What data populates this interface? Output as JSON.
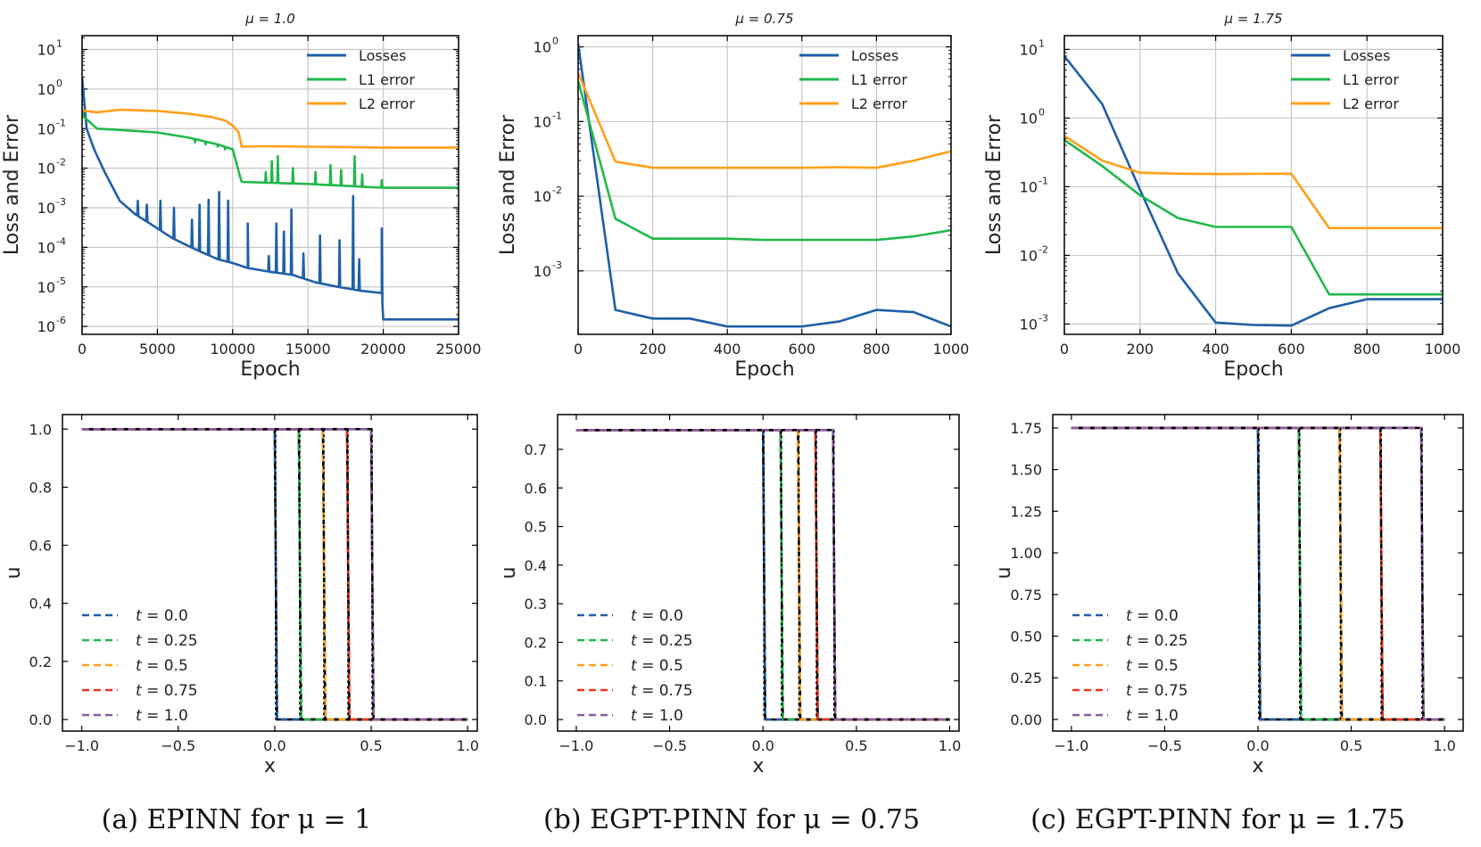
{
  "colors": {
    "losses": "#1f5fa8",
    "l1": "#22b84a",
    "l2": "#ff9f1a",
    "t0": "#1f5fa8",
    "t025": "#22b84a",
    "t05": "#ff9f1a",
    "t075": "#e8361e",
    "t1": "#8e5ca8",
    "exact": "#000000",
    "grid": "#c8c8c8"
  },
  "captions": [
    "(a) EPINN for μ = 1",
    "(b) EGPT-PINN for μ = 0.75",
    "(c) EGPT-PINN for μ = 1.75"
  ],
  "chart_data": [
    {
      "id": "loss-a",
      "type": "line",
      "yscale": "log",
      "title": "μ = 1.0",
      "xlabel": "Epoch",
      "ylabel": "Loss and Error",
      "xlim": [
        0,
        25000
      ],
      "ylim_exp": [
        -6.2,
        1.35
      ],
      "xticks": [
        0,
        5000,
        10000,
        15000,
        20000,
        25000
      ],
      "xticklabels": [
        "0",
        "5000",
        "10000",
        "15000",
        "20000",
        "25000"
      ],
      "ytick_exps": [
        -6,
        -5,
        -4,
        -3,
        -2,
        -1,
        0,
        1
      ],
      "yticklabels": [
        "10",
        "10",
        "10",
        "10",
        "10",
        "10",
        "10",
        "10"
      ],
      "ytick_sups": [
        "-6",
        "-5",
        "-4",
        "-3",
        "-2",
        "-1",
        "0",
        "1"
      ],
      "grid": true,
      "legend": "top-right",
      "series": [
        {
          "name": "Losses",
          "color_key": "losses",
          "x": [
            0,
            300,
            800,
            1500,
            2500,
            3500,
            4500,
            6000,
            7500,
            9000,
            10000,
            11000,
            12500,
            14000,
            15500,
            17000,
            18500,
            19900,
            20000,
            25000
          ],
          "y": [
            2.0,
            0.1,
            0.03,
            0.008,
            0.0015,
            0.0007,
            0.0004,
            0.00017,
            9e-05,
            5e-05,
            4e-05,
            3e-05,
            2.4e-05,
            2e-05,
            1.3e-05,
            1e-05,
            8e-06,
            7e-06,
            1.5e-06,
            1.5e-06
          ],
          "spikes": [
            [
              3700,
              0.0015
            ],
            [
              4300,
              0.0012
            ],
            [
              5200,
              0.0015
            ],
            [
              6100,
              0.001
            ],
            [
              7300,
              0.0005
            ],
            [
              7800,
              0.0012
            ],
            [
              8400,
              0.0016
            ],
            [
              9100,
              0.0025
            ],
            [
              9700,
              0.0015
            ],
            [
              11000,
              0.0004
            ],
            [
              12400,
              6e-05
            ],
            [
              12900,
              0.0004
            ],
            [
              13400,
              0.00025
            ],
            [
              13900,
              0.0009
            ],
            [
              14700,
              7e-05
            ],
            [
              15800,
              0.0002
            ],
            [
              17100,
              0.00015
            ],
            [
              18000,
              0.002
            ],
            [
              18400,
              5e-05
            ],
            [
              19900,
              0.0003
            ]
          ]
        },
        {
          "name": "L1 error",
          "color_key": "l1",
          "x": [
            0,
            100,
            1000,
            3000,
            5000,
            7000,
            9000,
            10000,
            10500,
            10600,
            15000,
            20000,
            25000
          ],
          "y": [
            0.3,
            0.2,
            0.1,
            0.09,
            0.08,
            0.06,
            0.04,
            0.03,
            0.006,
            0.0045,
            0.004,
            0.0032,
            0.0032
          ],
          "spikes": [
            [
              7500,
              0.045
            ],
            [
              8200,
              0.04
            ],
            [
              9000,
              0.035
            ],
            [
              9500,
              0.03
            ],
            [
              12200,
              0.008
            ],
            [
              12600,
              0.015
            ],
            [
              13000,
              0.02
            ],
            [
              14000,
              0.01
            ],
            [
              15500,
              0.008
            ],
            [
              16500,
              0.012
            ],
            [
              17200,
              0.009
            ],
            [
              18100,
              0.02
            ],
            [
              18600,
              0.007
            ],
            [
              19900,
              0.005
            ]
          ]
        },
        {
          "name": "L2 error",
          "color_key": "l2",
          "x": [
            0,
            200,
            1000,
            2500,
            5000,
            7000,
            8500,
            9500,
            10000,
            10400,
            10600,
            12000,
            15000,
            20000,
            25000
          ],
          "y": [
            0.3,
            0.28,
            0.26,
            0.3,
            0.28,
            0.24,
            0.2,
            0.16,
            0.12,
            0.08,
            0.035,
            0.036,
            0.035,
            0.033,
            0.033
          ]
        }
      ]
    },
    {
      "id": "loss-b",
      "type": "line",
      "yscale": "log",
      "title": "μ = 0.75",
      "xlabel": "Epoch",
      "ylabel": "Loss and Error",
      "xlim": [
        0,
        1000
      ],
      "ylim_exp": [
        -3.85,
        0.15
      ],
      "xticks": [
        0,
        200,
        400,
        600,
        800,
        1000
      ],
      "xticklabels": [
        "0",
        "200",
        "400",
        "600",
        "800",
        "1000"
      ],
      "ytick_exps": [
        -3,
        -2,
        -1,
        0
      ],
      "yticklabels": [
        "10",
        "10",
        "10",
        "10"
      ],
      "ytick_sups": [
        "-3",
        "-2",
        "-1",
        "0"
      ],
      "grid": true,
      "legend": "top-right",
      "series": [
        {
          "name": "Losses",
          "color_key": "losses",
          "x": [
            0,
            100,
            200,
            300,
            400,
            500,
            600,
            700,
            800,
            900,
            1000
          ],
          "y": [
            1.1,
            0.0003,
            0.00023,
            0.00023,
            0.00018,
            0.00018,
            0.00018,
            0.00021,
            0.0003,
            0.00028,
            0.00018
          ]
        },
        {
          "name": "L1 error",
          "color_key": "l1",
          "x": [
            0,
            100,
            200,
            300,
            400,
            500,
            600,
            700,
            800,
            900,
            1000
          ],
          "y": [
            0.35,
            0.005,
            0.0027,
            0.0027,
            0.0027,
            0.0026,
            0.0026,
            0.0026,
            0.0026,
            0.0029,
            0.0035
          ]
        },
        {
          "name": "L2 error",
          "color_key": "l2",
          "x": [
            0,
            100,
            200,
            300,
            400,
            500,
            600,
            700,
            800,
            900,
            1000
          ],
          "y": [
            0.45,
            0.029,
            0.024,
            0.024,
            0.024,
            0.024,
            0.024,
            0.0245,
            0.024,
            0.03,
            0.04
          ]
        }
      ]
    },
    {
      "id": "loss-c",
      "type": "line",
      "yscale": "log",
      "title": "μ = 1.75",
      "xlabel": "Epoch",
      "ylabel": "Loss and Error",
      "xlim": [
        0,
        1000
      ],
      "ylim_exp": [
        -3.15,
        1.2
      ],
      "xticks": [
        0,
        200,
        400,
        600,
        800,
        1000
      ],
      "xticklabels": [
        "0",
        "200",
        "400",
        "600",
        "800",
        "1000"
      ],
      "ytick_exps": [
        -3,
        -2,
        -1,
        0,
        1
      ],
      "yticklabels": [
        "10",
        "10",
        "10",
        "10",
        "10"
      ],
      "ytick_sups": [
        "-3",
        "-2",
        "-1",
        "0",
        "1"
      ],
      "grid": true,
      "legend": "top-right",
      "series": [
        {
          "name": "Losses",
          "color_key": "losses",
          "x": [
            0,
            100,
            200,
            300,
            400,
            500,
            600,
            700,
            800,
            900,
            1000
          ],
          "y": [
            8.0,
            1.6,
            0.09,
            0.0055,
            0.00105,
            0.00097,
            0.00095,
            0.0017,
            0.0023,
            0.0023,
            0.0023
          ]
        },
        {
          "name": "L1 error",
          "color_key": "l1",
          "x": [
            0,
            100,
            200,
            300,
            400,
            500,
            600,
            700,
            800,
            900,
            1000
          ],
          "y": [
            0.48,
            0.2,
            0.075,
            0.035,
            0.026,
            0.026,
            0.026,
            0.0027,
            0.0027,
            0.0027,
            0.0027
          ]
        },
        {
          "name": "L2 error",
          "color_key": "l2",
          "x": [
            0,
            100,
            200,
            300,
            400,
            500,
            600,
            700,
            800,
            900,
            1000
          ],
          "y": [
            0.55,
            0.24,
            0.16,
            0.155,
            0.153,
            0.154,
            0.155,
            0.025,
            0.025,
            0.025,
            0.025
          ]
        }
      ]
    },
    {
      "id": "sol-a",
      "type": "line",
      "xlabel": "x",
      "ylabel": "u",
      "xlim": [
        -1.1,
        1.05
      ],
      "ylim": [
        -0.04,
        1.05
      ],
      "xticks": [
        -1.0,
        -0.5,
        0.0,
        0.5,
        1.0
      ],
      "xticklabels": [
        "−1.0",
        "−0.5",
        "0.0",
        "0.5",
        "1.0"
      ],
      "yticks": [
        0.0,
        0.2,
        0.4,
        0.6,
        0.8,
        1.0
      ],
      "yticklabels": [
        "0.0",
        "0.2",
        "0.4",
        "0.6",
        "0.8",
        "1.0"
      ],
      "grid": false,
      "legend": "lower-left",
      "amplitude": 1.0,
      "xmin": -1.0,
      "xmax": 1.0,
      "shocks": [
        0.0,
        0.125,
        0.25,
        0.375,
        0.5
      ],
      "series": [
        {
          "name": "t = 0.0",
          "label_t": "t",
          "label_v": " = 0.0",
          "color_key": "t0"
        },
        {
          "name": "t = 0.25",
          "label_t": "t",
          "label_v": " = 0.25",
          "color_key": "t025"
        },
        {
          "name": "t = 0.5",
          "label_t": "t",
          "label_v": " = 0.5",
          "color_key": "t05"
        },
        {
          "name": "t = 0.75",
          "label_t": "t",
          "label_v": " = 0.75",
          "color_key": "t075"
        },
        {
          "name": "t = 1.0",
          "label_t": "t",
          "label_v": " = 1.0",
          "color_key": "t1"
        }
      ]
    },
    {
      "id": "sol-b",
      "type": "line",
      "xlabel": "x",
      "ylabel": "u",
      "xlim": [
        -1.1,
        1.05
      ],
      "ylim": [
        -0.03,
        0.79
      ],
      "xticks": [
        -1.0,
        -0.5,
        0.0,
        0.5,
        1.0
      ],
      "xticklabels": [
        "−1.0",
        "−0.5",
        "0.0",
        "0.5",
        "1.0"
      ],
      "yticks": [
        0.0,
        0.1,
        0.2,
        0.3,
        0.4,
        0.5,
        0.6,
        0.7
      ],
      "yticklabels": [
        "0.0",
        "0.1",
        "0.2",
        "0.3",
        "0.4",
        "0.5",
        "0.6",
        "0.7"
      ],
      "grid": false,
      "legend": "lower-left",
      "amplitude": 0.75,
      "xmin": -1.0,
      "xmax": 1.0,
      "shocks": [
        0.0,
        0.094,
        0.1875,
        0.281,
        0.375
      ],
      "series": [
        {
          "name": "t = 0.0",
          "label_t": "t",
          "label_v": " = 0.0",
          "color_key": "t0"
        },
        {
          "name": "t = 0.25",
          "label_t": "t",
          "label_v": " = 0.25",
          "color_key": "t025"
        },
        {
          "name": "t = 0.5",
          "label_t": "t",
          "label_v": " = 0.5",
          "color_key": "t05"
        },
        {
          "name": "t = 0.75",
          "label_t": "t",
          "label_v": " = 0.75",
          "color_key": "t075"
        },
        {
          "name": "t = 1.0",
          "label_t": "t",
          "label_v": " = 1.0",
          "color_key": "t1"
        }
      ]
    },
    {
      "id": "sol-c",
      "type": "line",
      "xlabel": "x",
      "ylabel": "u",
      "xlim": [
        -1.1,
        1.1
      ],
      "ylim": [
        -0.07,
        1.83
      ],
      "xticks": [
        -1.0,
        -0.5,
        0.0,
        0.5,
        1.0
      ],
      "xticklabels": [
        "−1.0",
        "−0.5",
        "0.0",
        "0.5",
        "1.0"
      ],
      "yticks": [
        0.0,
        0.25,
        0.5,
        0.75,
        1.0,
        1.25,
        1.5,
        1.75
      ],
      "yticklabels": [
        "0.00",
        "0.25",
        "0.50",
        "0.75",
        "1.00",
        "1.25",
        "1.50",
        "1.75"
      ],
      "grid": false,
      "legend": "lower-left",
      "amplitude": 1.75,
      "xmin": -1.0,
      "xmax": 1.0,
      "shocks": [
        0.0,
        0.219,
        0.4375,
        0.656,
        0.875
      ],
      "series": [
        {
          "name": "t = 0.0",
          "label_t": "t",
          "label_v": " = 0.0",
          "color_key": "t0"
        },
        {
          "name": "t = 0.25",
          "label_t": "t",
          "label_v": " = 0.25",
          "color_key": "t025"
        },
        {
          "name": "t = 0.5",
          "label_t": "t",
          "label_v": " = 0.5",
          "color_key": "t05"
        },
        {
          "name": "t = 0.75",
          "label_t": "t",
          "label_v": " = 0.75",
          "color_key": "t075"
        },
        {
          "name": "t = 1.0",
          "label_t": "t",
          "label_v": " = 1.0",
          "color_key": "t1"
        }
      ]
    }
  ]
}
